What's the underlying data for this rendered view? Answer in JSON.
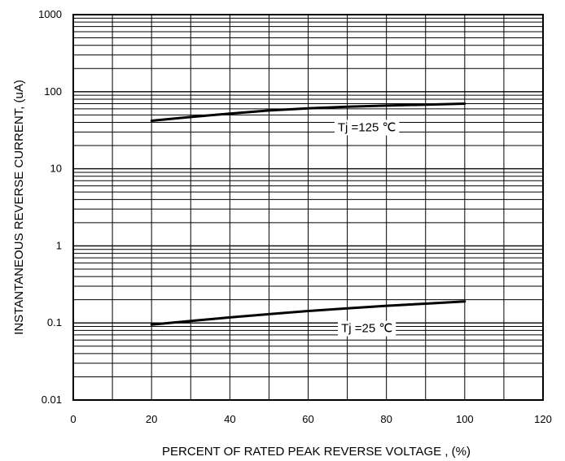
{
  "chart_data": {
    "type": "line",
    "title": "",
    "xlabel": "PERCENT OF RATED PEAK REVERSE VOLTAGE , (%)",
    "ylabel": "INSTANTANEOUS REVERSE CURRENT, (uA)",
    "xlim": [
      0,
      120
    ],
    "ylim": [
      0.01,
      1000
    ],
    "yscale": "log",
    "grid": true,
    "x_ticks": [
      "0",
      "20",
      "40",
      "60",
      "80",
      "100",
      "120"
    ],
    "y_ticks": [
      "0.01",
      "0.1",
      "1",
      "10",
      "100",
      "1000"
    ],
    "series": [
      {
        "name": "Tj =125 ℃",
        "x": [
          20,
          30,
          40,
          50,
          60,
          70,
          80,
          90,
          100
        ],
        "y": [
          42,
          47,
          52,
          57,
          61,
          64,
          66,
          68,
          70
        ]
      },
      {
        "name": "Tj =25 ℃",
        "x": [
          20,
          30,
          40,
          50,
          60,
          70,
          80,
          90,
          100
        ],
        "y": [
          0.095,
          0.106,
          0.118,
          0.13,
          0.143,
          0.155,
          0.167,
          0.178,
          0.19
        ]
      }
    ]
  }
}
